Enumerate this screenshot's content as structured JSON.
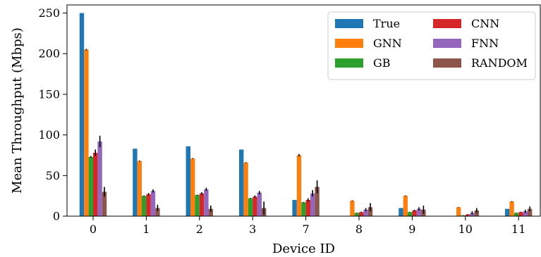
{
  "chart_data": {
    "type": "bar",
    "xlabel": "Device ID",
    "ylabel": "Mean Throughput (Mbps)",
    "ylim": [
      0,
      260
    ],
    "yticks": [
      0,
      50,
      100,
      150,
      200,
      250
    ],
    "categories": [
      "0",
      "1",
      "2",
      "3",
      "7",
      "8",
      "9",
      "10",
      "11"
    ],
    "legend_position": "top-right",
    "error_bars": true,
    "series": [
      {
        "name": "True",
        "color": "#1f77b4",
        "values": [
          250,
          83,
          86,
          82,
          20,
          0,
          10,
          0,
          9
        ],
        "errors": [
          0,
          0,
          0,
          0,
          0,
          0,
          0,
          0,
          0
        ]
      },
      {
        "name": "GNN",
        "color": "#ff7f0e",
        "values": [
          205,
          68,
          71,
          66,
          75,
          19,
          25,
          11,
          18
        ],
        "errors": [
          1,
          0.5,
          0.5,
          0.5,
          1.5,
          0.5,
          0.5,
          0.3,
          0.5
        ]
      },
      {
        "name": "GB",
        "color": "#2ca02c",
        "values": [
          73,
          25,
          26,
          22,
          17,
          4,
          5,
          1,
          4
        ],
        "errors": [
          1,
          0.5,
          0.5,
          0.5,
          0.5,
          0.3,
          0.3,
          0.2,
          0.3
        ]
      },
      {
        "name": "CNN",
        "color": "#d62728",
        "values": [
          78,
          27,
          28,
          24,
          20,
          5,
          7,
          2,
          5
        ],
        "errors": [
          4,
          1.5,
          1.5,
          1.5,
          2,
          0.5,
          1,
          0.5,
          0.5
        ]
      },
      {
        "name": "FNN",
        "color": "#9467bd",
        "values": [
          92,
          31,
          33,
          29,
          28,
          8,
          9,
          4,
          6
        ],
        "errors": [
          7,
          2,
          2,
          2,
          4,
          2,
          2,
          2,
          2
        ]
      },
      {
        "name": "RANDOM",
        "color": "#8c564b",
        "values": [
          30,
          10,
          9,
          10,
          36,
          11,
          8,
          7,
          9
        ],
        "errors": [
          6,
          4,
          4,
          8,
          8,
          5,
          5,
          3,
          3
        ]
      }
    ]
  }
}
